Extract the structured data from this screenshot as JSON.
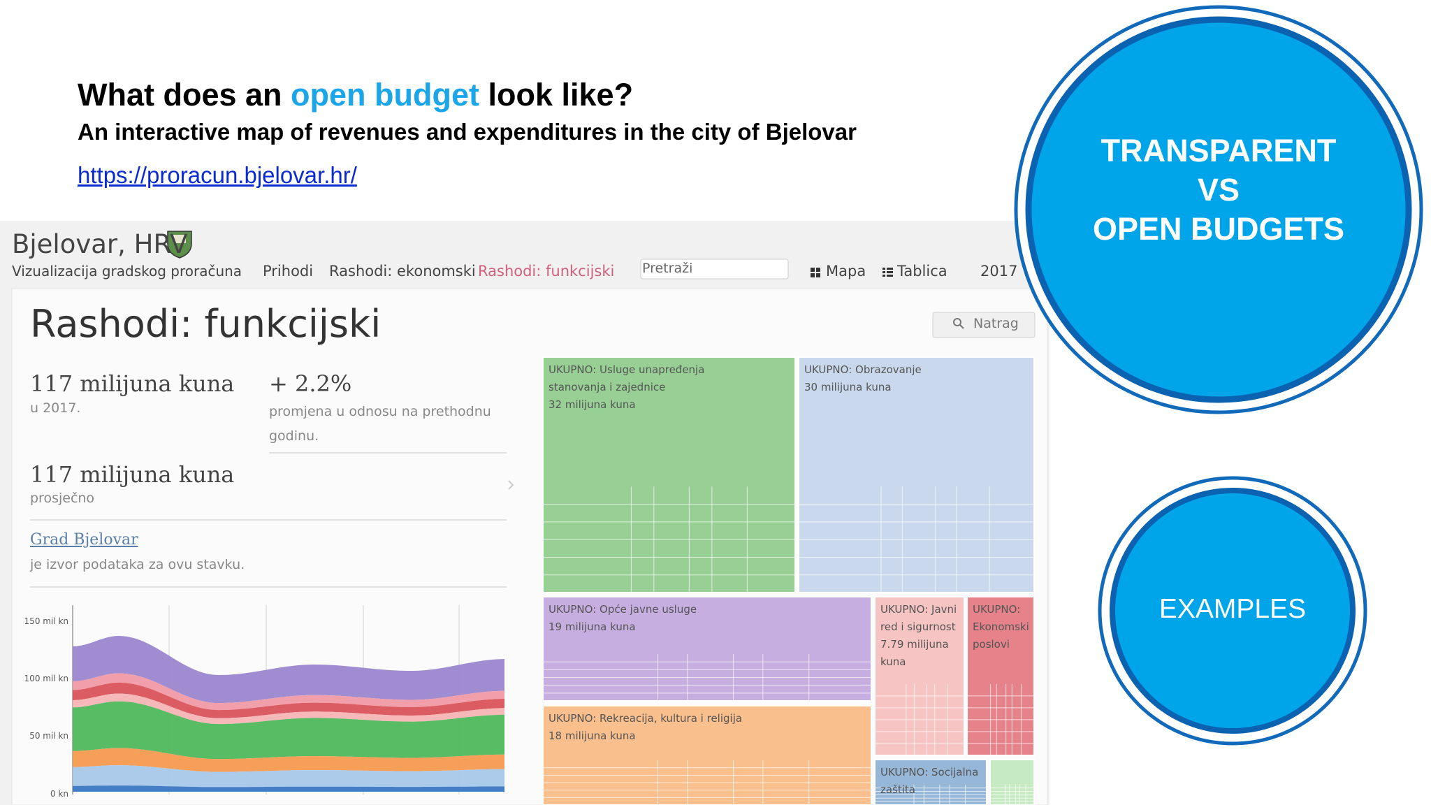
{
  "slide": {
    "title": [
      "What does an ",
      "open budget",
      " look like?"
    ],
    "subtitle": "An interactive map of revenues and expenditures in the city of Bjelovar",
    "link": "https://proracun.bjelovar.hr/",
    "circle_1": [
      "TRANSPARENT",
      "VS",
      "OPEN BUDGETS"
    ],
    "circle_2": "EXAMPLES"
  },
  "site": {
    "brand": "Bjelovar, HRV",
    "tagline": "Vizualizacija gradskog proračuna",
    "nav": [
      "Prihodi",
      "Rashodi: ekonomski",
      "Rashodi: funkcijski"
    ],
    "search_placeholder": "Pretraži",
    "views": [
      "Mapa",
      "Tablica"
    ],
    "year": "2017"
  },
  "page": {
    "heading": "Rashodi: funkcijski",
    "back_button": "Natrag",
    "total": "117 milijuna kuna",
    "total_note": "u 2017.",
    "change": "+ 2.2%",
    "change_note": "promjena u odnosu na prethodnu godinu.",
    "average": "117 milijuna kuna",
    "average_note": "prosječno",
    "source_link": "Grad Bjelovar",
    "source_note": "je izvor podataka za ovu stavku.",
    "chart_axis": [
      "150 mil kn",
      "100 mil kn",
      "50 mil kn",
      "0 kn"
    ]
  },
  "treemap": [
    {
      "label": "UKUPNO: Usluge unapređenja stanovanja i zajednice",
      "amount": "32 milijuna kuna"
    },
    {
      "label": "UKUPNO: Obrazovanje",
      "amount": "30 milijuna kuna"
    },
    {
      "label": "UKUPNO: Opće javne usluge",
      "amount": "19 milijuna kuna"
    },
    {
      "label": "UKUPNO: Rekreacija, kultura i religija",
      "amount": "18 milijuna kuna"
    },
    {
      "label": "UKUPNO: Javni red i sigurnost",
      "amount": "7.79 milijuna kuna"
    },
    {
      "label": "UKUPNO: Ekonomski poslovi"
    },
    {
      "label": "UKUPNO: Socijalna zaštita"
    },
    {}
  ]
}
